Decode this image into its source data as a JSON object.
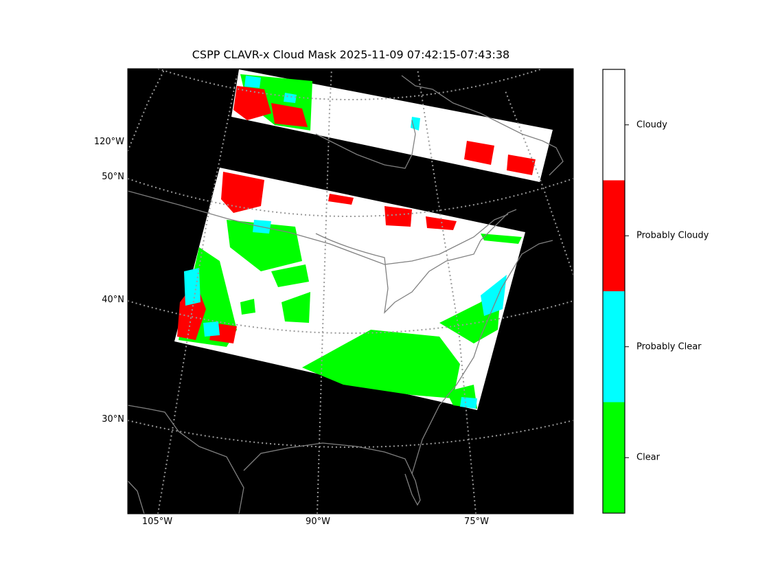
{
  "title": "CSPP CLAVR-x Cloud Mask 2025-11-09 07:42:15-07:43:38",
  "map": {
    "background": "#000000",
    "coastline_color": "#808080",
    "graticule_color": "#999999",
    "lat_labels": [
      "120°W",
      "50°N",
      "40°N",
      "30°N"
    ],
    "lon_labels": [
      "105°W",
      "90°W",
      "75°W"
    ]
  },
  "colorbar": {
    "categories": [
      {
        "label": "Cloudy",
        "color": "#ffffff"
      },
      {
        "label": "Probably Cloudy",
        "color": "#ff0000"
      },
      {
        "label": "Probably Clear",
        "color": "#00ffff"
      },
      {
        "label": "Clear",
        "color": "#00ff00"
      }
    ]
  }
}
